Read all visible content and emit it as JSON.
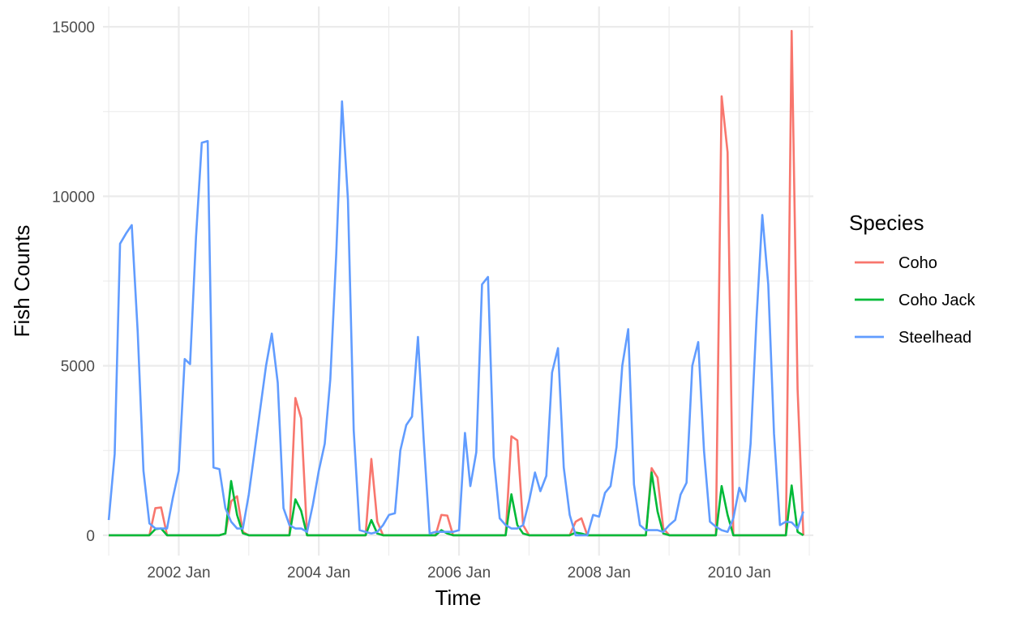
{
  "chart_data": {
    "type": "line",
    "xlabel": "Time",
    "ylabel": "Fish Counts",
    "legend_title": "Species",
    "legend_position": "right",
    "grid": true,
    "x_axis": "monthly dates",
    "xlim": [
      "2000-12-02",
      "2011-01-22"
    ],
    "ylim": [
      -600,
      15600
    ],
    "x_ticks": [
      {
        "date": "2002-01-01",
        "label": "2002 Jan"
      },
      {
        "date": "2004-01-01",
        "label": "2004 Jan"
      },
      {
        "date": "2006-01-01",
        "label": "2006 Jan"
      },
      {
        "date": "2008-01-01",
        "label": "2008 Jan"
      },
      {
        "date": "2010-01-01",
        "label": "2010 Jan"
      }
    ],
    "y_ticks": [
      0,
      5000,
      10000,
      15000
    ],
    "x": [
      "2001-01",
      "2001-02",
      "2001-03",
      "2001-04",
      "2001-05",
      "2001-06",
      "2001-07",
      "2001-08",
      "2001-09",
      "2001-10",
      "2001-11",
      "2001-12",
      "2002-01",
      "2002-02",
      "2002-03",
      "2002-04",
      "2002-05",
      "2002-06",
      "2002-07",
      "2002-08",
      "2002-09",
      "2002-10",
      "2002-11",
      "2002-12",
      "2003-01",
      "2003-02",
      "2003-03",
      "2003-04",
      "2003-05",
      "2003-06",
      "2003-07",
      "2003-08",
      "2003-09",
      "2003-10",
      "2003-11",
      "2003-12",
      "2004-01",
      "2004-02",
      "2004-03",
      "2004-04",
      "2004-05",
      "2004-06",
      "2004-07",
      "2004-08",
      "2004-09",
      "2004-10",
      "2004-11",
      "2004-12",
      "2005-01",
      "2005-02",
      "2005-03",
      "2005-04",
      "2005-05",
      "2005-06",
      "2005-07",
      "2005-08",
      "2005-09",
      "2005-10",
      "2005-11",
      "2005-12",
      "2006-01",
      "2006-02",
      "2006-03",
      "2006-04",
      "2006-05",
      "2006-06",
      "2006-07",
      "2006-08",
      "2006-09",
      "2006-10",
      "2006-11",
      "2006-12",
      "2007-01",
      "2007-02",
      "2007-03",
      "2007-04",
      "2007-05",
      "2007-06",
      "2007-07",
      "2007-08",
      "2007-09",
      "2007-10",
      "2007-11",
      "2007-12",
      "2008-01",
      "2008-02",
      "2008-03",
      "2008-04",
      "2008-05",
      "2008-06",
      "2008-07",
      "2008-08",
      "2008-09",
      "2008-10",
      "2008-11",
      "2008-12",
      "2009-01",
      "2009-02",
      "2009-03",
      "2009-04",
      "2009-05",
      "2009-06",
      "2009-07",
      "2009-08",
      "2009-09",
      "2009-10",
      "2009-11",
      "2009-12",
      "2010-01",
      "2010-02",
      "2010-03",
      "2010-04",
      "2010-05",
      "2010-06",
      "2010-07",
      "2010-08",
      "2010-09",
      "2010-10",
      "2010-11",
      "2010-12"
    ],
    "series": [
      {
        "name": "Coho",
        "color": "#F8766D",
        "values": [
          0,
          0,
          0,
          0,
          0,
          0,
          0,
          0,
          800,
          820,
          0,
          0,
          0,
          0,
          0,
          0,
          0,
          0,
          0,
          0,
          50,
          1000,
          1150,
          100,
          0,
          0,
          0,
          0,
          0,
          0,
          0,
          0,
          4050,
          3450,
          0,
          0,
          0,
          0,
          0,
          0,
          0,
          0,
          0,
          0,
          0,
          2250,
          400,
          0,
          0,
          0,
          0,
          0,
          0,
          0,
          0,
          0,
          0,
          600,
          580,
          0,
          0,
          0,
          0,
          0,
          0,
          0,
          0,
          0,
          0,
          2920,
          2800,
          300,
          0,
          0,
          0,
          0,
          0,
          0,
          0,
          0,
          400,
          500,
          0,
          0,
          0,
          0,
          0,
          0,
          0,
          0,
          0,
          0,
          0,
          1980,
          1700,
          200,
          0,
          0,
          0,
          0,
          0,
          0,
          0,
          0,
          0,
          12950,
          11300,
          0,
          0,
          0,
          0,
          0,
          0,
          0,
          0,
          0,
          0,
          14880,
          4300,
          0
        ]
      },
      {
        "name": "Coho Jack",
        "color": "#00BA38",
        "values": [
          0,
          0,
          0,
          0,
          0,
          0,
          0,
          0,
          180,
          200,
          0,
          0,
          0,
          0,
          0,
          0,
          0,
          0,
          0,
          0,
          50,
          1600,
          600,
          60,
          0,
          0,
          0,
          0,
          0,
          0,
          0,
          0,
          1060,
          720,
          0,
          0,
          0,
          0,
          0,
          0,
          0,
          0,
          0,
          0,
          0,
          450,
          50,
          0,
          0,
          0,
          0,
          0,
          0,
          0,
          0,
          0,
          0,
          150,
          50,
          0,
          0,
          0,
          0,
          0,
          0,
          0,
          0,
          0,
          0,
          1210,
          300,
          50,
          0,
          0,
          0,
          0,
          0,
          0,
          0,
          0,
          80,
          50,
          0,
          0,
          0,
          0,
          0,
          0,
          0,
          0,
          0,
          0,
          0,
          1850,
          700,
          50,
          0,
          0,
          0,
          0,
          0,
          0,
          0,
          0,
          0,
          1450,
          600,
          0,
          0,
          0,
          0,
          0,
          0,
          0,
          0,
          0,
          0,
          1470,
          100,
          0
        ]
      },
      {
        "name": "Steelhead",
        "color": "#619CFF",
        "values": [
          450,
          2400,
          8600,
          8900,
          9150,
          6000,
          1900,
          350,
          200,
          200,
          200,
          1100,
          1900,
          5200,
          5050,
          8800,
          11580,
          11630,
          2000,
          1950,
          800,
          400,
          200,
          200,
          1200,
          2500,
          3700,
          5000,
          5950,
          4500,
          800,
          300,
          200,
          200,
          100,
          900,
          1900,
          2700,
          4600,
          8300,
          12800,
          9900,
          3100,
          150,
          100,
          50,
          100,
          300,
          600,
          650,
          2500,
          3250,
          3500,
          5850,
          2800,
          50,
          100,
          100,
          100,
          100,
          150,
          3020,
          1450,
          2450,
          7400,
          7620,
          2300,
          500,
          300,
          200,
          200,
          300,
          1000,
          1850,
          1300,
          1750,
          4800,
          5520,
          2000,
          600,
          0,
          0,
          0,
          600,
          550,
          1250,
          1450,
          2600,
          5000,
          6080,
          1500,
          300,
          150,
          150,
          150,
          100,
          300,
          450,
          1200,
          1550,
          5000,
          5700,
          2500,
          400,
          250,
          150,
          100,
          500,
          1400,
          1000,
          2700,
          6400,
          9450,
          7400,
          3000,
          300,
          400,
          380,
          200,
          700
        ]
      }
    ]
  }
}
